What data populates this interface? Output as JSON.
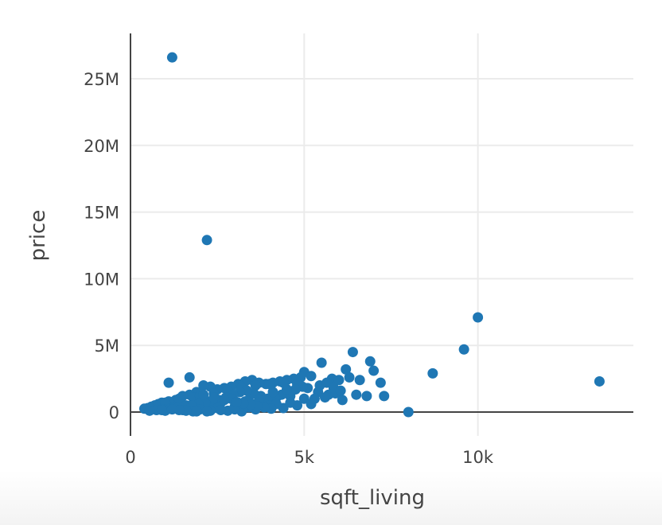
{
  "chart_data": {
    "type": "scatter",
    "xlabel": "sqft_living",
    "ylabel": "price",
    "xlim": [
      0,
      14700
    ],
    "ylim": [
      0,
      27200000
    ],
    "x_ticks": [
      {
        "value": 0,
        "label": "0"
      },
      {
        "value": 5000,
        "label": "5k"
      },
      {
        "value": 10000,
        "label": "10k"
      }
    ],
    "y_ticks": [
      {
        "value": 0,
        "label": "0"
      },
      {
        "value": 5000000,
        "label": "5M"
      },
      {
        "value": 10000000,
        "label": "10M"
      },
      {
        "value": 15000000,
        "label": "15M"
      },
      {
        "value": 20000000,
        "label": "20M"
      },
      {
        "value": 25000000,
        "label": "25M"
      }
    ],
    "marker_color": "#1f77b4",
    "grid": true,
    "series": [
      {
        "x": [
          1200,
          2200,
          10000,
          9600,
          6400,
          8700,
          5000,
          7000,
          13500,
          1100,
          1700,
          8000,
          6900,
          6200,
          5800,
          7200,
          7300,
          6500,
          6800,
          6000,
          5500,
          5200,
          4900,
          4700,
          4500,
          4300,
          4100,
          3900,
          3700,
          3500,
          3300,
          3100,
          2900,
          2700,
          2500,
          2300,
          2100,
          1900,
          1700,
          1500,
          1300,
          1100,
          900,
          700,
          500,
          400,
          600,
          800,
          1000,
          1400,
          1800,
          2000,
          2400,
          2800,
          3200,
          3600,
          4000,
          4400,
          4800,
          5100,
          5400,
          5700,
          6100,
          6300,
          6600,
          3000,
          3400,
          3800,
          4200,
          4600,
          2600,
          2200,
          1600,
          1200,
          5300,
          5600,
          5900,
          4950,
          4750,
          4550,
          4350,
          4150,
          3950,
          3750,
          3550,
          3350,
          3150,
          2950,
          2750,
          2550,
          2350,
          2150,
          1950,
          1750,
          1550,
          1350,
          1150,
          950,
          750,
          550,
          4000,
          3500,
          3000,
          2500,
          2000,
          1500,
          1000,
          3200,
          2800,
          3600,
          4400,
          2300,
          1800,
          4800,
          5000,
          4600,
          4200,
          3800,
          3400,
          3000,
          2600,
          2200,
          1900,
          1600,
          1400,
          1200,
          900,
          3100,
          3300,
          3700,
          4100,
          4500,
          2900,
          2700,
          2400,
          2100,
          5200,
          5450,
          5650,
          5850,
          6050,
          4050,
          3850,
          3650,
          3450,
          3250,
          3050
        ],
        "y": [
          26600000,
          12900000,
          7100000,
          4700000,
          4500000,
          2900000,
          3000000,
          3100000,
          2300000,
          2200000,
          2600000,
          0,
          3800000,
          3200000,
          2500000,
          2200000,
          1200000,
          1300000,
          1200000,
          2400000,
          3700000,
          2700000,
          2600000,
          2500000,
          2400000,
          2300000,
          2200000,
          2100000,
          2200000,
          2400000,
          2300000,
          2100000,
          1900000,
          1800000,
          1700000,
          1900000,
          2000000,
          1500000,
          1300000,
          1200000,
          900000,
          800000,
          700000,
          500000,
          300000,
          250000,
          400000,
          600000,
          700000,
          1000000,
          1100000,
          1200000,
          1400000,
          1600000,
          1800000,
          2000000,
          2100000,
          2200000,
          2100000,
          1800000,
          1500000,
          1300000,
          900000,
          2600000,
          2400000,
          800000,
          900000,
          1000000,
          1100000,
          1200000,
          700000,
          800000,
          500000,
          300000,
          1000000,
          1100000,
          1400000,
          1900000,
          1700000,
          1500000,
          1300000,
          1100000,
          1000000,
          1200000,
          1400000,
          1600000,
          1500000,
          1300000,
          1100000,
          900000,
          800000,
          700000,
          600000,
          500000,
          400000,
          300000,
          250000,
          200000,
          150000,
          100000,
          500000,
          600000,
          400000,
          300000,
          200000,
          150000,
          100000,
          50000,
          100000,
          200000,
          300000,
          100000,
          50000,
          500000,
          1000000,
          700000,
          600000,
          500000,
          350000,
          200000,
          150000,
          50000,
          50000,
          100000,
          150000,
          200000,
          150000,
          700000,
          800000,
          900000,
          1500000,
          1700000,
          1000000,
          900000,
          1100000,
          1300000,
          600000,
          2000000,
          2200000,
          1800000,
          1600000,
          250000,
          350000,
          450000,
          550000,
          650000,
          750000
        ]
      }
    ]
  }
}
